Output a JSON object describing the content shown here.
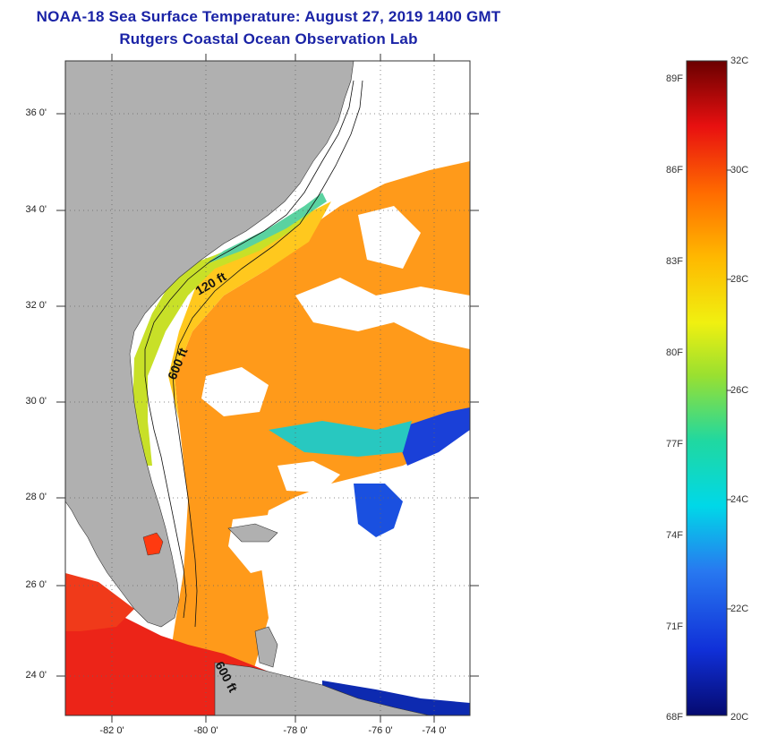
{
  "header": {
    "title": "NOAA-18 Sea Surface Temperature:  August 27, 2019 1400 GMT",
    "subtitle": "Rutgers Coastal Ocean Observation Lab"
  },
  "map": {
    "lat_labels": [
      "36 0'",
      "34 0'",
      "32 0'",
      "30 0'",
      "28 0'",
      "26 0'",
      "24 0'"
    ],
    "lon_labels": [
      "-82 0'",
      "-80 0'",
      "-78 0'",
      "-76 0'",
      "-74 0'"
    ],
    "contours": [
      "120 ft",
      "600 ft",
      "600 ft"
    ]
  },
  "legend": {
    "fahrenheit": [
      "89F",
      "86F",
      "83F",
      "80F",
      "77F",
      "74F",
      "71F",
      "68F"
    ],
    "celsius": [
      "32C",
      "30C",
      "28C",
      "26C",
      "24C",
      "22C",
      "20C"
    ]
  }
}
